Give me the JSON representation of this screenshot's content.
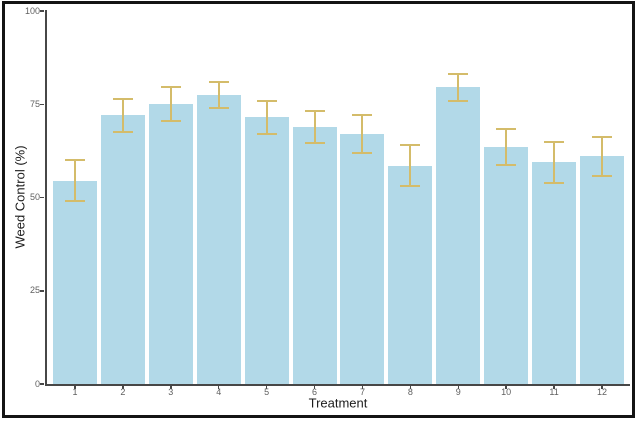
{
  "figure": {
    "y_axis_title": "Weed Control (%)",
    "x_axis_title": "Treatment",
    "colors": {
      "bar_fill": "#b2d9e8",
      "error_bar": "#d4bc6a",
      "axis_line": "#474747",
      "tick_label": "#5f5f5f",
      "axis_title": "#1c1c1c",
      "frame_border": "#141414",
      "background": "#ffffff"
    }
  },
  "chart_data": {
    "type": "bar",
    "title": "",
    "xlabel": "Treatment",
    "ylabel": "Weed Control (%)",
    "ylim": [
      0,
      100
    ],
    "y_ticks": [
      0,
      25,
      50,
      75,
      100
    ],
    "grid": false,
    "legend": null,
    "categories": [
      "1",
      "2",
      "3",
      "4",
      "5",
      "6",
      "7",
      "8",
      "9",
      "10",
      "11",
      "12"
    ],
    "values": [
      54.5,
      72,
      75,
      77.5,
      71.5,
      69,
      67,
      58.5,
      79.5,
      63.5,
      59.5,
      61
    ],
    "errors": [
      5.5,
      4.4,
      4.5,
      3.5,
      4.5,
      4.3,
      5.0,
      5.5,
      3.6,
      4.8,
      5.5,
      5.2
    ],
    "bar_color": "#b2d9e8",
    "error_bar_color": "#d4bc6a"
  }
}
